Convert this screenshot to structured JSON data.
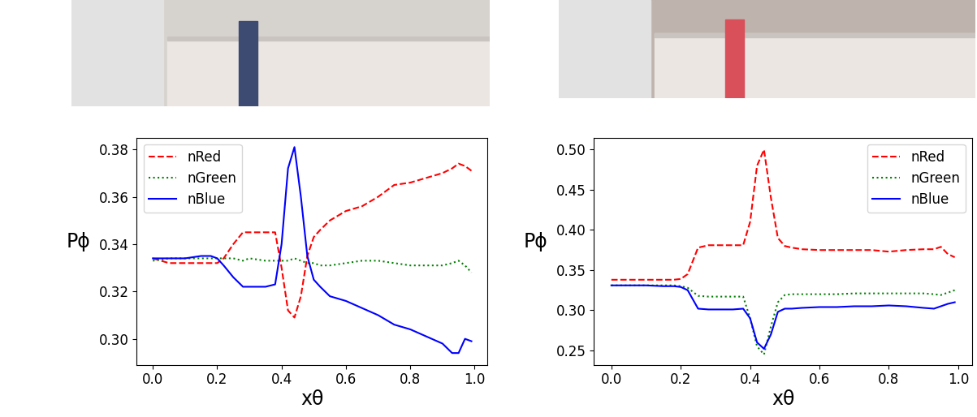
{
  "chart_data": [
    {
      "type": "line",
      "x_label": "xθ",
      "y_label": "Pϕ",
      "legend": "upper left",
      "x": [
        0,
        0.05,
        0.1,
        0.15,
        0.18,
        0.2,
        0.22,
        0.25,
        0.28,
        0.3,
        0.35,
        0.38,
        0.4,
        0.42,
        0.44,
        0.46,
        0.48,
        0.5,
        0.52,
        0.55,
        0.6,
        0.65,
        0.7,
        0.75,
        0.8,
        0.85,
        0.9,
        0.93,
        0.95,
        0.97,
        0.99
      ],
      "xlim": [
        -0.05,
        1.04
      ],
      "xticks": [
        {
          "value": 0,
          "label": "0.0"
        },
        {
          "value": 0.2,
          "label": "0.2"
        },
        {
          "value": 0.4,
          "label": "0.4"
        },
        {
          "value": 0.6,
          "label": "0.6"
        },
        {
          "value": 0.8,
          "label": "0.8"
        },
        {
          "value": 1.0,
          "label": "1.0"
        }
      ],
      "ylim": [
        0.289,
        0.385
      ],
      "yticks": [
        {
          "value": 0.3,
          "label": "0.30"
        },
        0.32,
        0.34,
        0.36,
        0.38
      ],
      "series": [
        {
          "name": "nRed",
          "color": "red",
          "line_style": "dashed",
          "values": [
            0.334,
            0.332,
            0.332,
            0.332,
            0.332,
            0.332,
            0.334,
            0.34,
            0.345,
            0.345,
            0.345,
            0.345,
            0.33,
            0.312,
            0.309,
            0.318,
            0.335,
            0.343,
            0.346,
            0.35,
            0.354,
            0.356,
            0.36,
            0.365,
            0.366,
            0.368,
            0.37,
            0.372,
            0.374,
            0.373,
            0.371
          ]
        },
        {
          "name": "nGreen",
          "color": "green",
          "line_style": "dotted",
          "values": [
            0.333,
            0.334,
            0.334,
            0.334,
            0.334,
            0.334,
            0.334,
            0.334,
            0.333,
            0.334,
            0.333,
            0.333,
            0.333,
            0.333,
            0.334,
            0.333,
            0.332,
            0.332,
            0.331,
            0.331,
            0.332,
            0.333,
            0.333,
            0.332,
            0.331,
            0.331,
            0.331,
            0.332,
            0.333,
            0.331,
            0.328
          ]
        },
        {
          "name": "nBlue",
          "color": "blue",
          "line_style": "solid",
          "values": [
            0.334,
            0.334,
            0.334,
            0.335,
            0.335,
            0.334,
            0.331,
            0.326,
            0.322,
            0.322,
            0.322,
            0.323,
            0.34,
            0.372,
            0.381,
            0.36,
            0.335,
            0.325,
            0.322,
            0.318,
            0.316,
            0.313,
            0.31,
            0.306,
            0.304,
            0.301,
            0.298,
            0.294,
            0.294,
            0.3,
            0.299
          ]
        }
      ]
    },
    {
      "type": "line",
      "x_label": "xθ",
      "y_label": "Pϕ",
      "legend": "upper right",
      "x": [
        0,
        0.05,
        0.1,
        0.15,
        0.18,
        0.2,
        0.22,
        0.25,
        0.28,
        0.3,
        0.35,
        0.38,
        0.4,
        0.42,
        0.44,
        0.46,
        0.48,
        0.5,
        0.52,
        0.55,
        0.6,
        0.65,
        0.7,
        0.75,
        0.8,
        0.85,
        0.9,
        0.93,
        0.95,
        0.97,
        0.99
      ],
      "xlim": [
        -0.05,
        1.04
      ],
      "xticks": [
        {
          "value": 0,
          "label": "0.0"
        },
        {
          "value": 0.2,
          "label": "0.2"
        },
        {
          "value": 0.4,
          "label": "0.4"
        },
        {
          "value": 0.6,
          "label": "0.6"
        },
        {
          "value": 0.8,
          "label": "0.8"
        },
        {
          "value": 1.0,
          "label": "1.0"
        }
      ],
      "ylim": [
        0.232,
        0.515
      ],
      "yticks": [
        0.25,
        {
          "value": 0.3,
          "label": "0.30"
        },
        0.35,
        {
          "value": 0.4,
          "label": "0.40"
        },
        0.45,
        {
          "value": 0.5,
          "label": "0.50"
        }
      ],
      "series": [
        {
          "name": "nRed",
          "color": "red",
          "line_style": "dashed",
          "values": [
            0.338,
            0.338,
            0.338,
            0.338,
            0.338,
            0.339,
            0.345,
            0.378,
            0.381,
            0.381,
            0.381,
            0.381,
            0.41,
            0.48,
            0.5,
            0.44,
            0.39,
            0.38,
            0.378,
            0.376,
            0.375,
            0.375,
            0.375,
            0.375,
            0.373,
            0.375,
            0.376,
            0.376,
            0.379,
            0.37,
            0.366
          ]
        },
        {
          "name": "nGreen",
          "color": "green",
          "line_style": "dotted",
          "values": [
            0.331,
            0.331,
            0.331,
            0.331,
            0.331,
            0.33,
            0.328,
            0.318,
            0.317,
            0.317,
            0.317,
            0.317,
            0.29,
            0.255,
            0.245,
            0.28,
            0.31,
            0.319,
            0.32,
            0.32,
            0.32,
            0.32,
            0.321,
            0.321,
            0.321,
            0.321,
            0.321,
            0.32,
            0.319,
            0.322,
            0.325
          ]
        },
        {
          "name": "nBlue",
          "color": "blue",
          "line_style": "solid",
          "values": [
            0.331,
            0.331,
            0.331,
            0.33,
            0.33,
            0.329,
            0.325,
            0.302,
            0.301,
            0.301,
            0.301,
            0.302,
            0.29,
            0.26,
            0.252,
            0.27,
            0.298,
            0.302,
            0.302,
            0.303,
            0.304,
            0.304,
            0.305,
            0.305,
            0.306,
            0.305,
            0.303,
            0.302,
            0.305,
            0.308,
            0.31
          ]
        }
      ]
    }
  ]
}
